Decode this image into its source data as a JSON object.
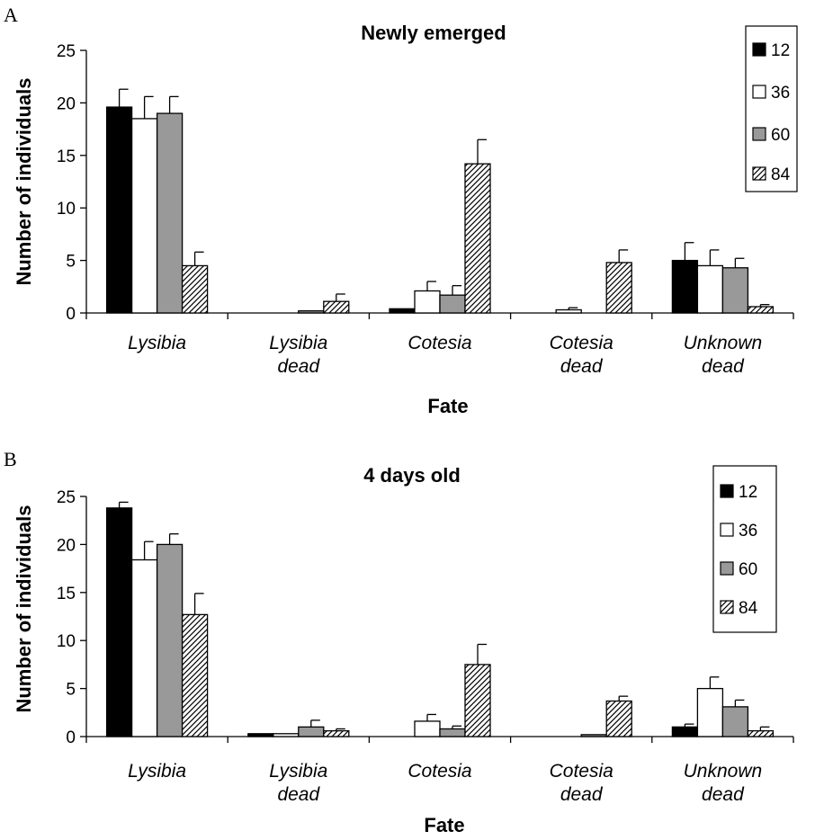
{
  "chart_data": [
    {
      "type": "bar",
      "panel": "A",
      "title": "Newly emerged",
      "xlabel": "Fate",
      "ylabel": "Number of individuals",
      "ylim": [
        0,
        25
      ],
      "yticks": [
        0,
        5,
        10,
        15,
        20,
        25
      ],
      "categories": [
        [
          "Lysibia"
        ],
        [
          "Lysibia",
          "dead"
        ],
        [
          "Cotesia"
        ],
        [
          "Cotesia",
          "dead"
        ],
        [
          "Unknown",
          "dead"
        ]
      ],
      "legend_position": "top-right",
      "series": [
        {
          "name": "12",
          "fill": "#000000",
          "pattern": "solid",
          "values": [
            19.6,
            0.0,
            0.4,
            0.0,
            5.0
          ],
          "errors": [
            1.7,
            0.0,
            0.0,
            0.0,
            1.7
          ]
        },
        {
          "name": "36",
          "fill": "#ffffff",
          "pattern": "solid",
          "values": [
            18.5,
            0.0,
            2.1,
            0.3,
            4.5
          ],
          "errors": [
            2.1,
            0.0,
            0.9,
            0.2,
            1.5
          ]
        },
        {
          "name": "60",
          "fill": "#999999",
          "pattern": "solid",
          "values": [
            19.0,
            0.2,
            1.7,
            0.0,
            4.3
          ],
          "errors": [
            1.6,
            0.0,
            0.9,
            0.0,
            0.9
          ]
        },
        {
          "name": "84",
          "fill": "#ffffff",
          "pattern": "hatch",
          "values": [
            4.5,
            1.1,
            14.2,
            4.8,
            0.6
          ],
          "errors": [
            1.3,
            0.7,
            2.3,
            1.2,
            0.2
          ]
        }
      ]
    },
    {
      "type": "bar",
      "panel": "B",
      "title": "4 days old",
      "xlabel": "Fate",
      "ylabel": "Number of individuals",
      "ylim": [
        0,
        25
      ],
      "yticks": [
        0,
        5,
        10,
        15,
        20,
        25
      ],
      "categories": [
        [
          "Lysibia"
        ],
        [
          "Lysibia",
          "dead"
        ],
        [
          "Cotesia"
        ],
        [
          "Cotesia",
          "dead"
        ],
        [
          "Unknown",
          "dead"
        ]
      ],
      "legend_position": "top-right",
      "series": [
        {
          "name": "12",
          "fill": "#000000",
          "pattern": "solid",
          "values": [
            23.8,
            0.3,
            0.0,
            0.0,
            1.0
          ],
          "errors": [
            0.6,
            0.0,
            0.0,
            0.0,
            0.3
          ]
        },
        {
          "name": "36",
          "fill": "#ffffff",
          "pattern": "solid",
          "values": [
            18.4,
            0.3,
            1.6,
            0.0,
            5.0
          ],
          "errors": [
            1.9,
            0.0,
            0.7,
            0.0,
            1.2
          ]
        },
        {
          "name": "60",
          "fill": "#999999",
          "pattern": "solid",
          "values": [
            20.0,
            1.0,
            0.8,
            0.2,
            3.1
          ],
          "errors": [
            1.1,
            0.7,
            0.3,
            0.0,
            0.7
          ]
        },
        {
          "name": "84",
          "fill": "#ffffff",
          "pattern": "hatch",
          "values": [
            12.7,
            0.6,
            7.5,
            3.7,
            0.6
          ],
          "errors": [
            2.2,
            0.2,
            2.1,
            0.5,
            0.4
          ]
        }
      ]
    }
  ]
}
